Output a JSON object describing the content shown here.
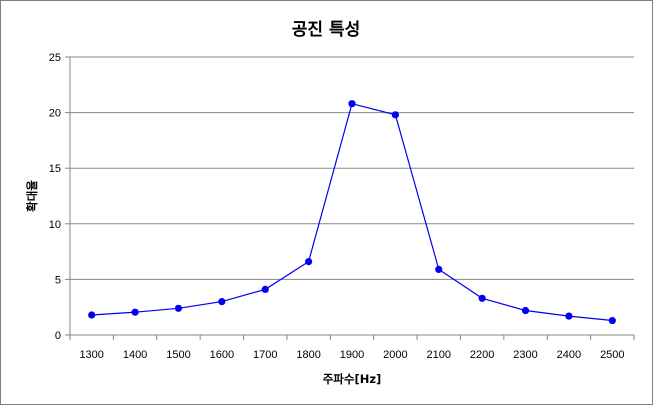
{
  "chart_data": {
    "type": "line",
    "title": "공진 특성",
    "xlabel": "주파수[Hz]",
    "ylabel": "확대율",
    "categories": [
      "1300",
      "1400",
      "1500",
      "1600",
      "1700",
      "1800",
      "1900",
      "2000",
      "2100",
      "2200",
      "2300",
      "2400",
      "2500"
    ],
    "series": [
      {
        "values": [
          1.8,
          2.05,
          2.4,
          3.0,
          4.1,
          6.6,
          20.8,
          19.8,
          5.9,
          3.3,
          2.2,
          1.7,
          1.3
        ]
      }
    ],
    "yticks": [
      "0",
      "5",
      "10",
      "15",
      "20",
      "25"
    ],
    "ylim": [
      0,
      25
    ],
    "grid": true,
    "series_color": "#0000ee",
    "grid_color": "#868686"
  }
}
